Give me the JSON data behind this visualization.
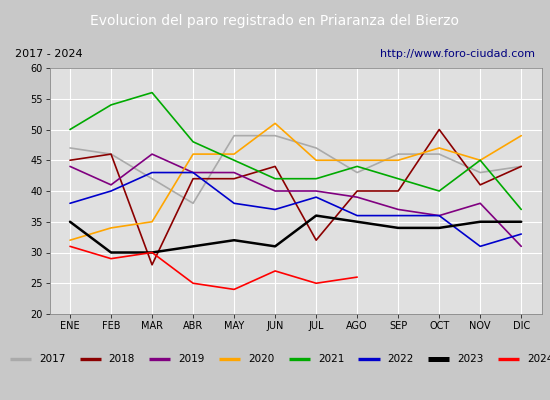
{
  "title": "Evolucion del paro registrado en Priaranza del Bierzo",
  "subtitle_left": "2017 - 2024",
  "subtitle_right": "http://www.foro-ciudad.com",
  "months": [
    "ENE",
    "FEB",
    "MAR",
    "ABR",
    "MAY",
    "JUN",
    "JUL",
    "AGO",
    "SEP",
    "OCT",
    "NOV",
    "DIC"
  ],
  "ylim": [
    20,
    60
  ],
  "yticks": [
    20,
    25,
    30,
    35,
    40,
    45,
    50,
    55,
    60
  ],
  "series": {
    "2017": {
      "color": "#aaaaaa",
      "linewidth": 1.2,
      "data": [
        47,
        46,
        42,
        38,
        49,
        49,
        47,
        43,
        46,
        46,
        43,
        44
      ]
    },
    "2018": {
      "color": "#8b0000",
      "linewidth": 1.2,
      "data": [
        45,
        46,
        28,
        42,
        42,
        44,
        32,
        40,
        40,
        50,
        41,
        44
      ]
    },
    "2019": {
      "color": "#800080",
      "linewidth": 1.2,
      "data": [
        44,
        41,
        46,
        43,
        43,
        40,
        40,
        39,
        37,
        36,
        38,
        31
      ]
    },
    "2020": {
      "color": "#ffa500",
      "linewidth": 1.2,
      "data": [
        32,
        34,
        35,
        46,
        46,
        51,
        45,
        45,
        45,
        47,
        45,
        49
      ]
    },
    "2021": {
      "color": "#00aa00",
      "linewidth": 1.2,
      "data": [
        50,
        54,
        56,
        48,
        45,
        42,
        42,
        44,
        42,
        40,
        45,
        37
      ]
    },
    "2022": {
      "color": "#0000cc",
      "linewidth": 1.2,
      "data": [
        38,
        40,
        43,
        43,
        38,
        37,
        39,
        36,
        36,
        36,
        31,
        33
      ]
    },
    "2023": {
      "color": "#000000",
      "linewidth": 1.8,
      "data": [
        35,
        30,
        30,
        31,
        32,
        31,
        36,
        35,
        34,
        34,
        35,
        35
      ]
    },
    "2024": {
      "color": "#ff0000",
      "linewidth": 1.2,
      "data": [
        31,
        29,
        30,
        25,
        24,
        27,
        25,
        26,
        null,
        null,
        null,
        null
      ]
    }
  },
  "outer_bg": "#c8c8c8",
  "plot_bg_color": "#e0e0e0",
  "title_bg_color": "#4169b0",
  "title_color": "#ffffff",
  "subtitle_bg_color": "#e8e8e8",
  "grid_color": "#ffffff",
  "legend_bg_color": "#e8e8e8"
}
